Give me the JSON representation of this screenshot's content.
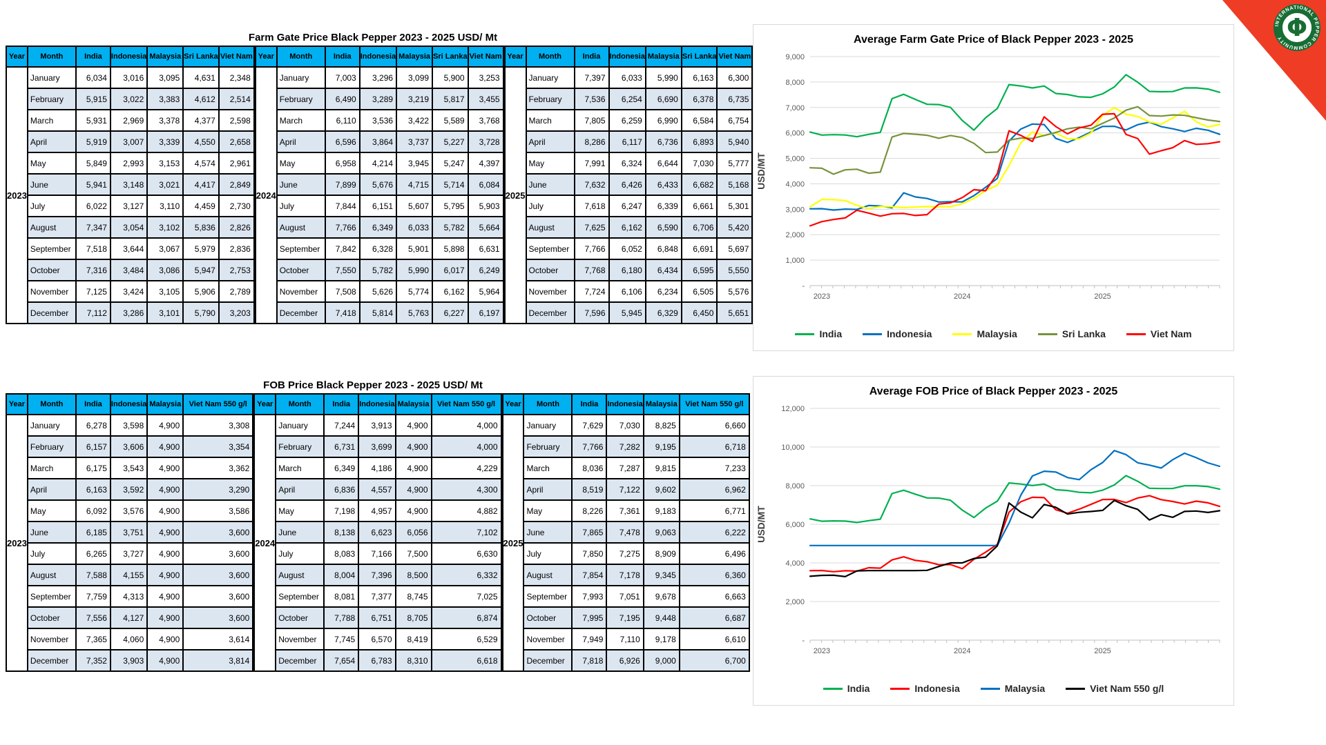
{
  "colors": {
    "table_header_fill": "#00B0F0",
    "table_alt_row_fill": "#DCE6F1",
    "ribbon_red": "#EF3C25",
    "logo_green": "#176D33",
    "gridline": "#D9D9D9",
    "axis_text": "#595959"
  },
  "logo": {
    "ring_text": "INTERNATIONAL PEPPER COMMUNITY",
    "symbol": "Φ"
  },
  "months": [
    "January",
    "February",
    "March",
    "April",
    "May",
    "June",
    "July",
    "August",
    "September",
    "October",
    "November",
    "December"
  ],
  "farm_table": {
    "title": "Farm Gate Price Black Pepper 2023 - 2025 USD/ Mt",
    "columns": [
      "Year",
      "Month",
      "India",
      "Indonesia",
      "Malaysia",
      "Sri Lanka",
      "Viet Nam"
    ],
    "years": [
      "2023",
      "2024",
      "2025"
    ],
    "values_source": "chart_data.0.series"
  },
  "fob_table": {
    "title": "FOB Price Black Pepper 2023 - 2025 USD/ Mt",
    "columns": [
      "Year",
      "Month",
      "India",
      "Indonesia",
      "Malaysia",
      "Viet Nam 550 g/l"
    ],
    "years": [
      "2023",
      "2024",
      "2025"
    ],
    "values_source": "chart_data.1.series"
  },
  "chart_data": [
    {
      "type": "line",
      "title": "Average Farm Gate Price of Black Pepper 2023 - 2025",
      "xlabel": "",
      "ylabel": "USD/MT",
      "ylim": [
        0,
        9000
      ],
      "ytick_step": 1000,
      "x_labels": [
        "2023",
        "2024",
        "2025"
      ],
      "x_unit": "month",
      "points_per_year": 12,
      "grid": true,
      "legend_position": "bottom",
      "series": [
        {
          "name": "India",
          "color": "#00B050",
          "values": [
            6034,
            5915,
            5931,
            5919,
            5849,
            5941,
            6022,
            7347,
            7518,
            7316,
            7125,
            7112,
            7003,
            6490,
            6110,
            6596,
            6958,
            7899,
            7844,
            7766,
            7842,
            7550,
            7508,
            7418,
            7397,
            7536,
            7805,
            8286,
            7991,
            7632,
            7618,
            7625,
            7766,
            7768,
            7724,
            7596
          ]
        },
        {
          "name": "Indonesia",
          "color": "#0070C0",
          "values": [
            3016,
            3022,
            2969,
            3007,
            2993,
            3148,
            3127,
            3054,
            3644,
            3484,
            3424,
            3286,
            3296,
            3289,
            3536,
            3864,
            4214,
            5676,
            6151,
            6349,
            6328,
            5782,
            5626,
            5814,
            6033,
            6254,
            6259,
            6117,
            6324,
            6426,
            6247,
            6162,
            6052,
            6180,
            6106,
            5945
          ]
        },
        {
          "name": "Malaysia",
          "color": "#FFFF00",
          "values": [
            3095,
            3383,
            3378,
            3339,
            3153,
            3021,
            3110,
            3102,
            3067,
            3086,
            3105,
            3101,
            3099,
            3219,
            3422,
            3737,
            3945,
            4715,
            5607,
            6033,
            5901,
            5990,
            5774,
            5763,
            5990,
            6690,
            6990,
            6736,
            6644,
            6433,
            6339,
            6590,
            6848,
            6434,
            6234,
            6329
          ]
        },
        {
          "name": "Sri Lanka",
          "color": "#77933C",
          "values": [
            4631,
            4612,
            4377,
            4550,
            4574,
            4417,
            4459,
            5836,
            5979,
            5947,
            5906,
            5790,
            5900,
            5817,
            5589,
            5227,
            5247,
            5714,
            5795,
            5782,
            5898,
            6017,
            6162,
            6227,
            6163,
            6378,
            6584,
            6893,
            7030,
            6682,
            6661,
            6706,
            6691,
            6595,
            6505,
            6450
          ]
        },
        {
          "name": "Viet Nam",
          "color": "#FF0000",
          "values": [
            2348,
            2514,
            2598,
            2658,
            2961,
            2849,
            2730,
            2826,
            2836,
            2753,
            2789,
            3203,
            3253,
            3455,
            3768,
            3728,
            4397,
            6084,
            5903,
            5664,
            6631,
            6249,
            5964,
            6197,
            6300,
            6735,
            6754,
            5940,
            5777,
            5168,
            5301,
            5420,
            5697,
            5550,
            5576,
            5651
          ]
        }
      ]
    },
    {
      "type": "line",
      "title": "Average FOB Price of Black Pepper 2023 - 2025",
      "xlabel": "",
      "ylabel": "USD/MT",
      "ylim": [
        0,
        12000
      ],
      "ytick_step": 2000,
      "x_labels": [
        "2023",
        "2024",
        "2025"
      ],
      "x_unit": "month",
      "points_per_year": 12,
      "grid": true,
      "legend_position": "bottom",
      "series": [
        {
          "name": "India",
          "color": "#00B050",
          "values": [
            6278,
            6157,
            6175,
            6163,
            6092,
            6185,
            6265,
            7588,
            7759,
            7556,
            7365,
            7352,
            7244,
            6731,
            6349,
            6836,
            7198,
            8138,
            8083,
            8004,
            8081,
            7788,
            7745,
            7654,
            7629,
            7766,
            8036,
            8519,
            8226,
            7865,
            7850,
            7854,
            7993,
            7995,
            7949,
            7818
          ]
        },
        {
          "name": "Indonesia",
          "color": "#FF0000",
          "values": [
            3598,
            3606,
            3543,
            3592,
            3576,
            3751,
            3727,
            4155,
            4313,
            4127,
            4060,
            3903,
            3913,
            3699,
            4186,
            4557,
            4957,
            6623,
            7166,
            7396,
            7377,
            6751,
            6570,
            6783,
            7030,
            7282,
            7287,
            7122,
            7361,
            7478,
            7275,
            7178,
            7051,
            7195,
            7110,
            6926
          ]
        },
        {
          "name": "Malaysia",
          "color": "#0070C0",
          "values": [
            4900,
            4900,
            4900,
            4900,
            4900,
            4900,
            4900,
            4900,
            4900,
            4900,
            4900,
            4900,
            4900,
            4900,
            4900,
            4900,
            4900,
            6056,
            7500,
            8500,
            8745,
            8705,
            8419,
            8310,
            8825,
            9195,
            9815,
            9602,
            9183,
            9063,
            8909,
            9345,
            9678,
            9448,
            9178,
            9000
          ]
        },
        {
          "name": "Viet Nam 550 g/l",
          "color": "#000000",
          "values": [
            3308,
            3354,
            3362,
            3290,
            3586,
            3600,
            3600,
            3600,
            3600,
            3600,
            3614,
            3814,
            4000,
            4000,
            4229,
            4300,
            4882,
            7102,
            6630,
            6332,
            7025,
            6874,
            6529,
            6618,
            6660,
            6718,
            7233,
            6962,
            6771,
            6222,
            6496,
            6360,
            6663,
            6687,
            6610,
            6700
          ]
        }
      ]
    }
  ]
}
